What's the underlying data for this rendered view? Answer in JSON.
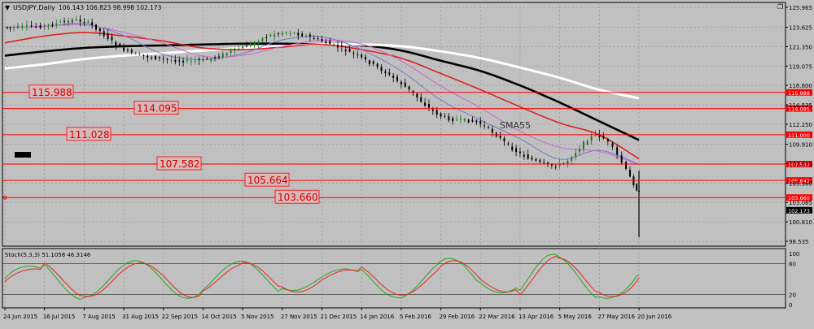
{
  "header": {
    "menu_glyph": "▼",
    "title": "USDJPY,Daily",
    "ohlc": "106.143 106.823 98.998 102.173"
  },
  "window_controls": {
    "restore_glyph": "❐"
  },
  "price_axis": {
    "ticks": [
      "125.965",
      "123.625",
      "121.350",
      "119.075",
      "116.800",
      "114.535",
      "112.250",
      "109.910",
      "107.635",
      "105.360",
      "103.085",
      "100.810",
      "98.535"
    ],
    "current_price": "102.173"
  },
  "levels": [
    {
      "label": "115.988",
      "tag": "115.988",
      "value": 115.988
    },
    {
      "label": "114.095",
      "tag": "114.095",
      "value": 114.095
    },
    {
      "label": "111.028",
      "tag": "111.000",
      "value": 111.028
    },
    {
      "label": "107.582",
      "tag": "107.582",
      "value": 107.582
    },
    {
      "label": "105.664",
      "tag": "105.642",
      "value": 105.664
    },
    {
      "label": "103.660",
      "tag": "103.660",
      "value": 103.66
    }
  ],
  "ma_label": "SMA55",
  "stoch": {
    "label": "Stoch(5,3,3) 51.1058 46.3146",
    "ticks": [
      "100",
      "80",
      "20",
      "0"
    ]
  },
  "time_axis": [
    "24 Jun 2015",
    "16 Jul 2015",
    "7 Aug 2015",
    "31 Aug 2015",
    "22 Sep 2015",
    "14 Oct 2015",
    "5 Nov 2015",
    "27 Nov 2015",
    "21 Dec 2015",
    "14 Jan 2016",
    "5 Feb 2016",
    "29 Feb 2016",
    "22 Mar 2016",
    "13 Apr 2016",
    "5 May 2016",
    "27 May 2016",
    "20 Jun 2016"
  ],
  "colors": {
    "background": "#c0c0c0",
    "grid": "#8c8c8c",
    "level": "#ff0000",
    "level_text": "#cc0000",
    "sma200": "#ffffff",
    "sma100": "#000000",
    "sma55": "#dd2222",
    "fast_ma": "#7777cc",
    "fast_ma2": "#cc66cc",
    "candle_up": "#1e7a1e",
    "candle_down": "#000000",
    "stoch_main": "#22aa22",
    "stoch_signal": "#ee2222"
  },
  "chart_data": {
    "type": "line",
    "title": "USDJPY,Daily",
    "xlabel": "",
    "ylabel": "",
    "ylim": [
      98.535,
      125.965
    ],
    "x": [
      "24 Jun 2015",
      "16 Jul 2015",
      "7 Aug 2015",
      "31 Aug 2015",
      "22 Sep 2015",
      "14 Oct 2015",
      "5 Nov 2015",
      "27 Nov 2015",
      "21 Dec 2015",
      "14 Jan 2016",
      "5 Feb 2016",
      "29 Feb 2016",
      "22 Mar 2016",
      "13 Apr 2016",
      "5 May 2016",
      "27 May 2016",
      "20 Jun 2016"
    ],
    "series": [
      {
        "values": [
          123.6,
          123.8,
          124.3,
          121.0,
          119.9,
          119.8,
          121.3,
          123.0,
          122.0,
          120.0,
          117.0,
          113.2,
          112.3,
          108.8,
          107.5,
          110.9,
          104.2
        ]
      }
    ],
    "moving_averages": [
      {
        "values": [
          120.3,
          120.8,
          121.2,
          121.4,
          121.5,
          121.6,
          121.7,
          121.7,
          121.6,
          121.5,
          120.9,
          119.7,
          118.5,
          116.8,
          114.8,
          112.6,
          110.4
        ]
      },
      {
        "values": [
          118.8,
          119.3,
          119.9,
          120.3,
          120.6,
          120.9,
          121.2,
          121.4,
          121.6,
          121.6,
          121.4,
          120.8,
          120.0,
          118.9,
          117.7,
          116.3,
          115.3
        ]
      },
      {
        "values": [
          121.8,
          122.6,
          123.0,
          122.6,
          122.0,
          121.2,
          121.0,
          121.3,
          121.6,
          121.0,
          120.0,
          118.2,
          116.3,
          114.3,
          112.4,
          111.0,
          108.2
        ]
      }
    ],
    "stochastic": {
      "main": [
        58,
        75,
        70,
        30,
        28,
        68,
        70,
        55,
        48,
        30,
        72,
        25,
        40,
        85,
        20,
        72,
        51.1058
      ],
      "signal": [
        52,
        70,
        68,
        35,
        30,
        62,
        66,
        58,
        50,
        35,
        65,
        30,
        42,
        80,
        25,
        68,
        46.3146
      ]
    },
    "current_price": 102.173
  }
}
